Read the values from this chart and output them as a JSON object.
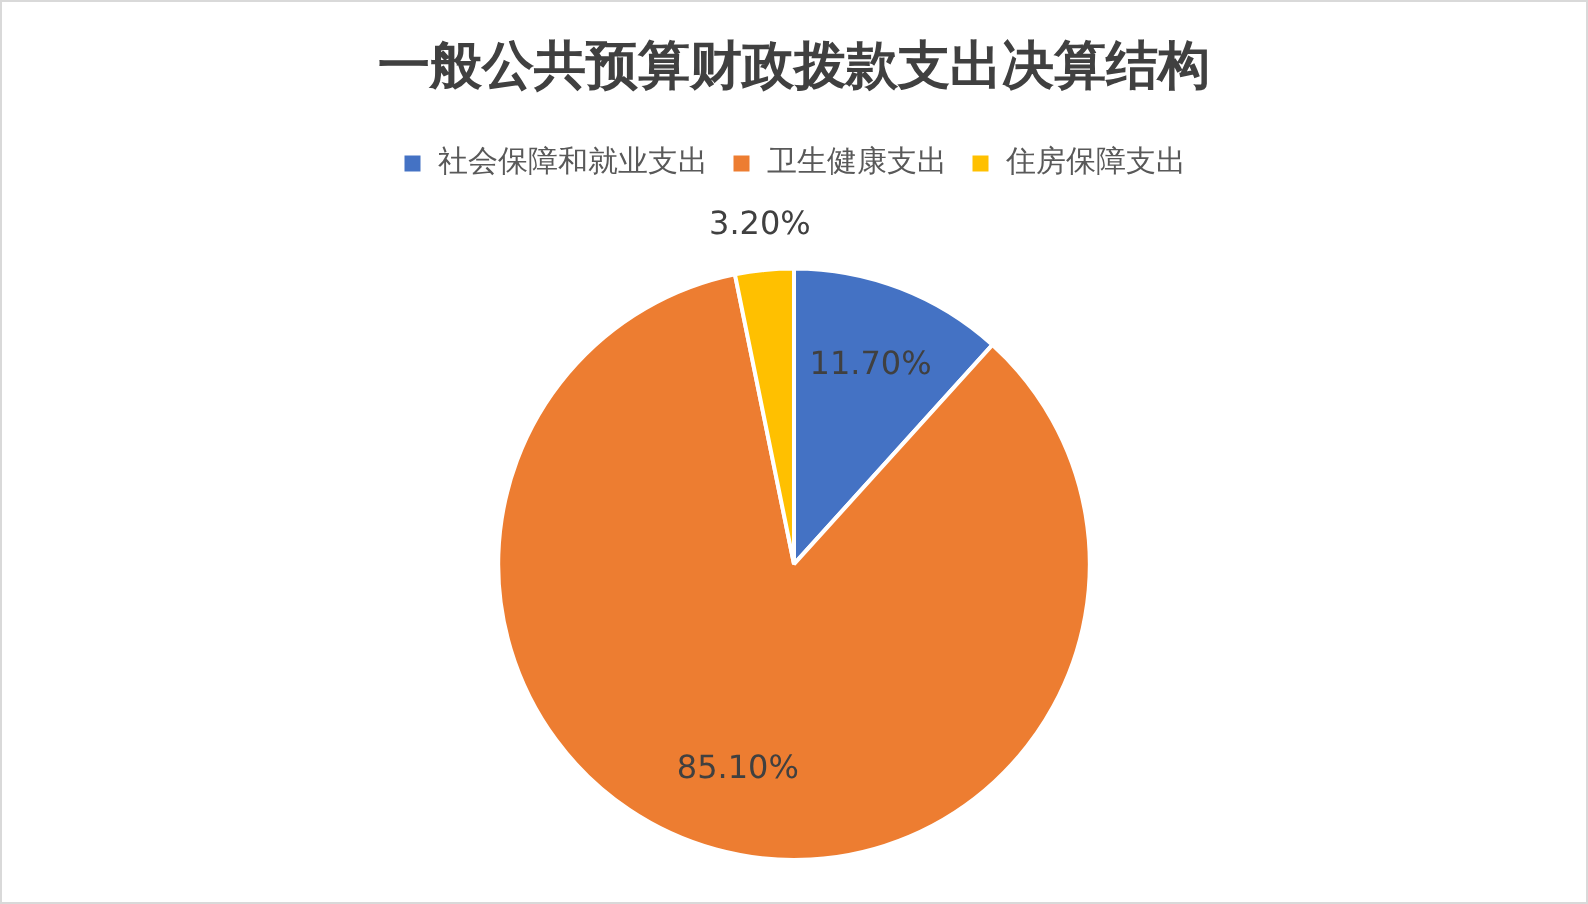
{
  "chart_data": {
    "type": "pie",
    "title": "一般公共预算财政拨款支出决算结构",
    "categories": [
      "社会保障和就业支出",
      "卫生健康支出",
      "住房保障支出"
    ],
    "values": [
      11.7,
      85.1,
      3.2
    ],
    "colors": [
      "#4472c4",
      "#ed7d31",
      "#ffc000"
    ],
    "value_labels": [
      "11.70%",
      "85.10%",
      "3.20%"
    ],
    "legend": "top"
  }
}
